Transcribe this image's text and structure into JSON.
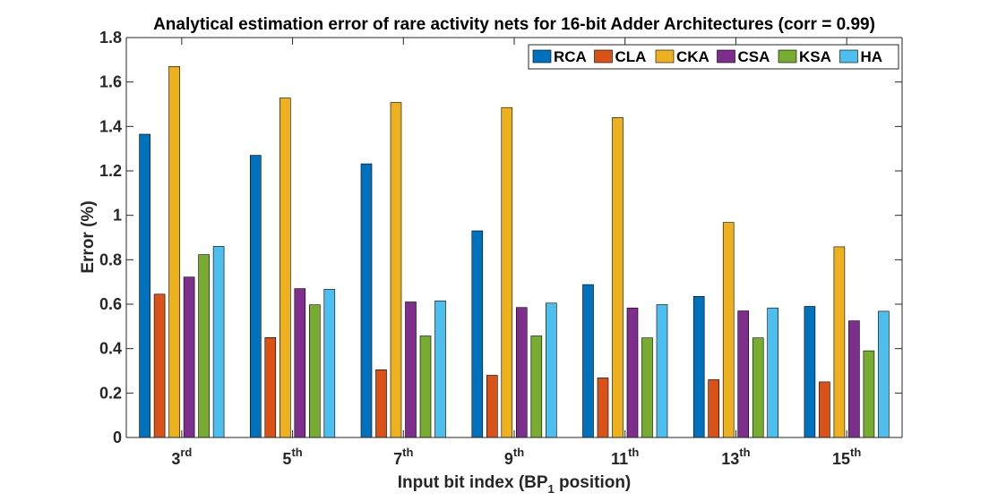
{
  "chart_data": {
    "type": "bar",
    "title": "Analytical estimation error of rare activity nets for 16-bit Adder Architectures (corr = 0.99)",
    "xlabel": {
      "text": "Input bit index (BP",
      "sub": "1",
      "tail": " position)"
    },
    "ylabel": "Error (%)",
    "ylim": [
      0,
      1.8
    ],
    "yticks": [
      0,
      0.2,
      0.4,
      0.6,
      0.8,
      1,
      1.2,
      1.4,
      1.6,
      1.8
    ],
    "ytick_labels": [
      "0",
      "0.2",
      "0.4",
      "0.6",
      "0.8",
      "1",
      "1.2",
      "1.4",
      "1.6",
      "1.8"
    ],
    "categories": [
      {
        "base": "3",
        "sup": "rd"
      },
      {
        "base": "5",
        "sup": "th"
      },
      {
        "base": "7",
        "sup": "th"
      },
      {
        "base": "9",
        "sup": "th"
      },
      {
        "base": "11",
        "sup": "th"
      },
      {
        "base": "13",
        "sup": "th"
      },
      {
        "base": "15",
        "sup": "th"
      }
    ],
    "legend_position": "top-right",
    "series": [
      {
        "name": "RCA",
        "color": "#0072BD",
        "values": [
          1.365,
          1.27,
          1.232,
          0.93,
          0.688,
          0.635,
          0.59
        ]
      },
      {
        "name": "CLA",
        "color": "#D95319",
        "values": [
          0.645,
          0.45,
          0.305,
          0.28,
          0.268,
          0.26,
          0.25
        ]
      },
      {
        "name": "CKA",
        "color": "#EDB120",
        "values": [
          1.67,
          1.528,
          1.508,
          1.485,
          1.44,
          0.968,
          0.858
        ]
      },
      {
        "name": "CSA",
        "color": "#7E2F8E",
        "values": [
          0.722,
          0.67,
          0.61,
          0.585,
          0.583,
          0.57,
          0.525
        ]
      },
      {
        "name": "KSA",
        "color": "#77AC30",
        "values": [
          0.823,
          0.597,
          0.457,
          0.457,
          0.448,
          0.448,
          0.39
        ]
      },
      {
        "name": "HA",
        "color": "#4DBEEE",
        "values": [
          0.86,
          0.667,
          0.615,
          0.605,
          0.598,
          0.583,
          0.568
        ]
      }
    ]
  }
}
